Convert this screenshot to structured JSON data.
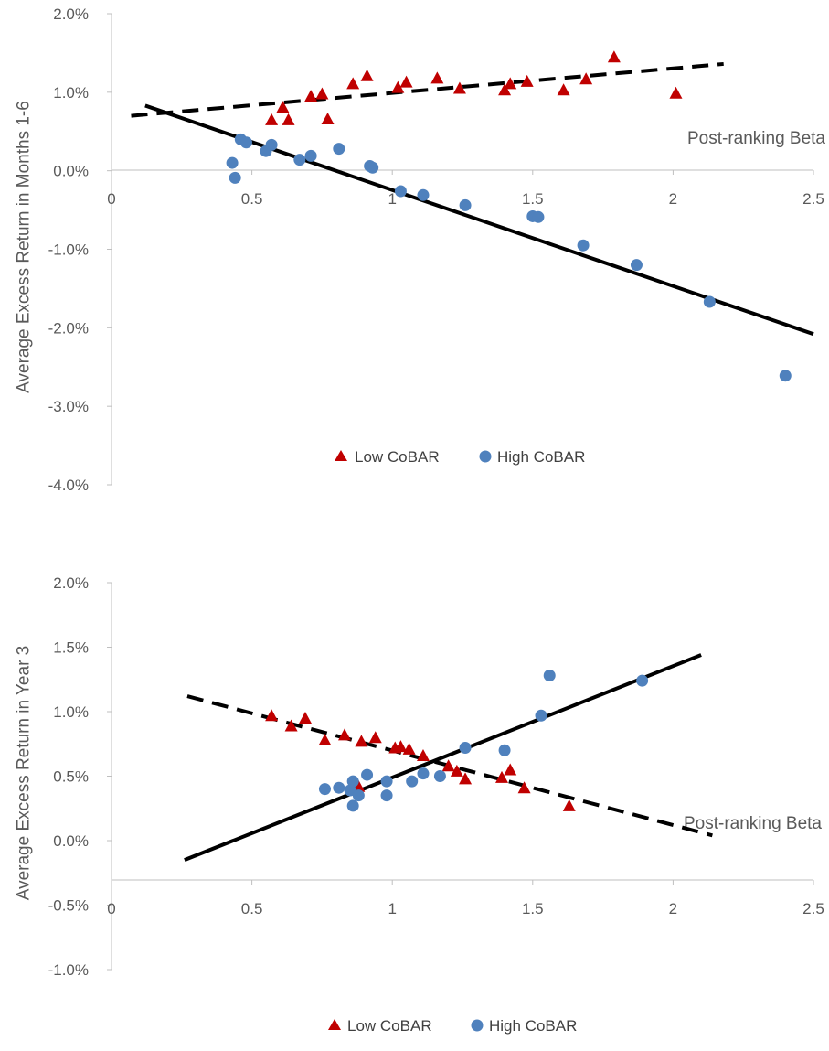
{
  "colors": {
    "low": "#C00000",
    "high": "#4F81BD",
    "axis": "#BFBFBF",
    "text": "#595959",
    "line": "#000000"
  },
  "chart_data": [
    {
      "type": "scatter",
      "ylabel": "Average Excess Return in Months 1-6",
      "xlabel": "Post-ranking Beta",
      "xlim": [
        0,
        2.5
      ],
      "ylim": [
        -0.04,
        0.02
      ],
      "x_ticks": [
        "0",
        "0.5",
        "1",
        "1.5",
        "2",
        "2.5"
      ],
      "y_ticks": [
        "2.0%",
        "1.0%",
        "0.0%",
        "-1.0%",
        "-2.0%",
        "-3.0%",
        "-4.0%"
      ],
      "legend": [
        "Low CoBAR",
        "High CoBAR"
      ],
      "legend_position": "bottom",
      "series": [
        {
          "name": "Low CoBAR",
          "marker": "triangle",
          "points": [
            [
              0.57,
              0.0065
            ],
            [
              0.61,
              0.0081
            ],
            [
              0.63,
              0.0065
            ],
            [
              0.71,
              0.0095
            ],
            [
              0.75,
              0.0098
            ],
            [
              0.77,
              0.0066
            ],
            [
              0.86,
              0.0111
            ],
            [
              0.91,
              0.0121
            ],
            [
              1.02,
              0.0106
            ],
            [
              1.05,
              0.0113
            ],
            [
              1.16,
              0.0118
            ],
            [
              1.24,
              0.0105
            ],
            [
              1.4,
              0.0103
            ],
            [
              1.42,
              0.0111
            ],
            [
              1.48,
              0.0114
            ],
            [
              1.61,
              0.0103
            ],
            [
              1.69,
              0.0117
            ],
            [
              1.79,
              0.0145
            ],
            [
              2.01,
              0.0099
            ]
          ]
        },
        {
          "name": "High CoBAR",
          "marker": "circle",
          "points": [
            [
              0.43,
              0.001
            ],
            [
              0.44,
              -0.0009
            ],
            [
              0.46,
              0.004
            ],
            [
              0.48,
              0.0036
            ],
            [
              0.55,
              0.0025
            ],
            [
              0.57,
              0.0033
            ],
            [
              0.67,
              0.0014
            ],
            [
              0.71,
              0.0019
            ],
            [
              0.81,
              0.0028
            ],
            [
              0.92,
              0.0006
            ],
            [
              0.93,
              0.0004
            ],
            [
              1.03,
              -0.0026
            ],
            [
              1.11,
              -0.0031
            ],
            [
              1.26,
              -0.0044
            ],
            [
              1.5,
              -0.0058
            ],
            [
              1.52,
              -0.0059
            ],
            [
              1.68,
              -0.0095
            ],
            [
              1.87,
              -0.012
            ],
            [
              2.13,
              -0.0167
            ],
            [
              2.4,
              -0.0261
            ]
          ]
        }
      ],
      "trendlines": [
        {
          "series": "Low CoBAR",
          "style": "dashed",
          "from": [
            0.07,
            0.007
          ],
          "to": [
            2.18,
            0.0136
          ]
        },
        {
          "series": "High CoBAR",
          "style": "solid",
          "from": [
            0.12,
            0.0083
          ],
          "to": [
            2.5,
            -0.0208
          ]
        }
      ]
    },
    {
      "type": "scatter",
      "ylabel": "Average Excess Return in Year 3",
      "xlabel": "Post-ranking Beta",
      "xlim": [
        0,
        2.5
      ],
      "ylim": [
        -0.01,
        0.02
      ],
      "x_ticks": [
        "0",
        "0.5",
        "1",
        "1.5",
        "2",
        "2.5"
      ],
      "y_ticks": [
        "2.0%",
        "1.5%",
        "1.0%",
        "0.5%",
        "0.0%",
        "-0.5%",
        "-1.0%"
      ],
      "legend": [
        "Low CoBAR",
        "High CoBAR"
      ],
      "legend_position": "bottom",
      "series": [
        {
          "name": "Low CoBAR",
          "marker": "triangle",
          "points": [
            [
              0.57,
              0.0097
            ],
            [
              0.64,
              0.0089
            ],
            [
              0.69,
              0.0095
            ],
            [
              0.76,
              0.0078
            ],
            [
              0.83,
              0.0082
            ],
            [
              0.88,
              0.0042
            ],
            [
              0.89,
              0.0077
            ],
            [
              0.94,
              0.008
            ],
            [
              1.01,
              0.0072
            ],
            [
              1.03,
              0.0073
            ],
            [
              1.06,
              0.0071
            ],
            [
              1.11,
              0.0066
            ],
            [
              1.2,
              0.0058
            ],
            [
              1.23,
              0.0054
            ],
            [
              1.26,
              0.0048
            ],
            [
              1.39,
              0.0049
            ],
            [
              1.42,
              0.0055
            ],
            [
              1.47,
              0.0041
            ],
            [
              1.63,
              0.0027
            ]
          ]
        },
        {
          "name": "High CoBAR",
          "marker": "circle",
          "points": [
            [
              0.76,
              0.004
            ],
            [
              0.81,
              0.0041
            ],
            [
              0.85,
              0.0039
            ],
            [
              0.86,
              0.0027
            ],
            [
              0.86,
              0.0046
            ],
            [
              0.88,
              0.0035
            ],
            [
              0.91,
              0.0051
            ],
            [
              0.98,
              0.0035
            ],
            [
              0.98,
              0.0046
            ],
            [
              1.07,
              0.0046
            ],
            [
              1.11,
              0.0052
            ],
            [
              1.17,
              0.005
            ],
            [
              1.26,
              0.0072
            ],
            [
              1.4,
              0.007
            ],
            [
              1.53,
              0.0097
            ],
            [
              1.56,
              0.0128
            ],
            [
              1.89,
              0.0124
            ]
          ]
        }
      ],
      "trendlines": [
        {
          "series": "Low CoBAR",
          "style": "dashed",
          "from": [
            0.27,
            0.0112
          ],
          "to": [
            2.14,
            0.0004
          ]
        },
        {
          "series": "High CoBAR",
          "style": "solid",
          "from": [
            0.26,
            -0.0015
          ],
          "to": [
            2.1,
            0.0144
          ]
        }
      ]
    }
  ]
}
